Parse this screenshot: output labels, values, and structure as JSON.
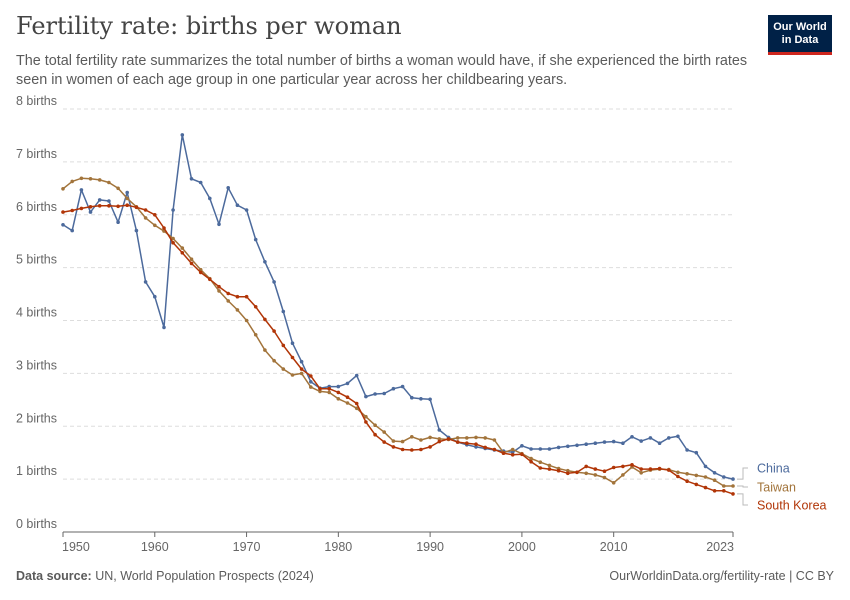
{
  "header": {
    "title": "Fertility rate: births per woman",
    "subtitle": "The total fertility rate summarizes the total number of births a woman would have, if she experienced the birth rates seen in women of each age group in one particular year across her childbearing years."
  },
  "logo": {
    "line1": "Our World",
    "line2": "in Data"
  },
  "footer": {
    "source_label": "Data source:",
    "source_text": "UN, World Population Prospects (2024)",
    "url": "OurWorldinData.org/fertility-rate | CC BY"
  },
  "colors": {
    "china": "#4c6a9c",
    "taiwan": "#a2743b",
    "south_korea": "#b13507",
    "grid": "#dddddd",
    "axis": "#666666"
  },
  "chart_data": {
    "type": "line",
    "title": "Fertility rate: births per woman",
    "xlabel": "",
    "ylabel": "",
    "xlim": [
      1950,
      2023
    ],
    "ylim": [
      0,
      8
    ],
    "y_ticks": [
      0,
      1,
      2,
      3,
      4,
      5,
      6,
      7,
      8
    ],
    "y_tick_labels": [
      "0 births",
      "1 births",
      "2 births",
      "3 births",
      "4 births",
      "5 births",
      "6 births",
      "7 births",
      "8 births"
    ],
    "x_ticks": [
      1950,
      1960,
      1970,
      1980,
      1990,
      2000,
      2010,
      2023
    ],
    "x_tick_labels": [
      "1950",
      "1960",
      "1970",
      "1980",
      "1990",
      "2000",
      "2010",
      "2023"
    ],
    "grid": "horizontal dashed",
    "legend": "right, line ends",
    "x": [
      1950,
      1951,
      1952,
      1953,
      1954,
      1955,
      1956,
      1957,
      1958,
      1959,
      1960,
      1961,
      1962,
      1963,
      1964,
      1965,
      1966,
      1967,
      1968,
      1969,
      1970,
      1971,
      1972,
      1973,
      1974,
      1975,
      1976,
      1977,
      1978,
      1979,
      1980,
      1981,
      1982,
      1983,
      1984,
      1985,
      1986,
      1987,
      1988,
      1989,
      1990,
      1991,
      1992,
      1993,
      1994,
      1995,
      1996,
      1997,
      1998,
      1999,
      2000,
      2001,
      2002,
      2003,
      2004,
      2005,
      2006,
      2007,
      2008,
      2009,
      2010,
      2011,
      2012,
      2013,
      2014,
      2015,
      2016,
      2017,
      2018,
      2019,
      2020,
      2021,
      2022,
      2023
    ],
    "series": [
      {
        "name": "China",
        "color": "#4c6a9c",
        "values": [
          5.81,
          5.7,
          6.47,
          6.05,
          6.28,
          6.26,
          5.86,
          6.42,
          5.7,
          4.73,
          4.45,
          3.87,
          6.09,
          7.51,
          6.68,
          6.61,
          6.31,
          5.82,
          6.51,
          6.18,
          6.09,
          5.53,
          5.11,
          4.73,
          4.17,
          3.57,
          3.22,
          2.84,
          2.72,
          2.75,
          2.75,
          2.81,
          2.96,
          2.56,
          2.61,
          2.62,
          2.71,
          2.75,
          2.54,
          2.52,
          2.51,
          1.93,
          1.79,
          1.7,
          1.65,
          1.61,
          1.58,
          1.55,
          1.53,
          1.51,
          1.63,
          1.57,
          1.57,
          1.57,
          1.6,
          1.62,
          1.64,
          1.66,
          1.68,
          1.7,
          1.71,
          1.68,
          1.8,
          1.72,
          1.78,
          1.68,
          1.78,
          1.81,
          1.55,
          1.5,
          1.24,
          1.12,
          1.04,
          1.0
        ]
      },
      {
        "name": "Taiwan",
        "color": "#a2743b",
        "values": [
          6.49,
          6.63,
          6.69,
          6.68,
          6.66,
          6.61,
          6.5,
          6.31,
          6.15,
          5.94,
          5.8,
          5.69,
          5.55,
          5.37,
          5.16,
          4.96,
          4.79,
          4.56,
          4.37,
          4.2,
          4.0,
          3.73,
          3.44,
          3.24,
          3.08,
          2.97,
          3.0,
          2.74,
          2.66,
          2.64,
          2.52,
          2.44,
          2.34,
          2.18,
          2.02,
          1.89,
          1.72,
          1.71,
          1.8,
          1.74,
          1.79,
          1.76,
          1.75,
          1.78,
          1.78,
          1.79,
          1.78,
          1.74,
          1.5,
          1.56,
          1.48,
          1.39,
          1.32,
          1.26,
          1.2,
          1.16,
          1.13,
          1.11,
          1.08,
          1.03,
          0.93,
          1.08,
          1.23,
          1.12,
          1.17,
          1.19,
          1.18,
          1.13,
          1.1,
          1.07,
          1.04,
          0.98,
          0.87,
          0.87
        ]
      },
      {
        "name": "South Korea",
        "color": "#b13507",
        "values": [
          6.05,
          6.08,
          6.12,
          6.15,
          6.17,
          6.17,
          6.16,
          6.18,
          6.14,
          6.09,
          6.0,
          5.75,
          5.47,
          5.28,
          5.08,
          4.91,
          4.78,
          4.64,
          4.51,
          4.45,
          4.45,
          4.26,
          4.02,
          3.8,
          3.53,
          3.3,
          3.08,
          2.95,
          2.71,
          2.71,
          2.64,
          2.55,
          2.43,
          2.08,
          1.84,
          1.7,
          1.61,
          1.56,
          1.55,
          1.56,
          1.61,
          1.71,
          1.76,
          1.7,
          1.68,
          1.66,
          1.6,
          1.56,
          1.49,
          1.46,
          1.47,
          1.33,
          1.21,
          1.19,
          1.16,
          1.11,
          1.13,
          1.24,
          1.19,
          1.15,
          1.22,
          1.24,
          1.27,
          1.19,
          1.19,
          1.2,
          1.17,
          1.05,
          0.96,
          0.9,
          0.84,
          0.78,
          0.78,
          0.72
        ]
      }
    ]
  }
}
